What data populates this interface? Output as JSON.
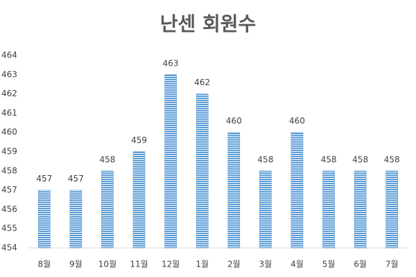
{
  "chart_data": {
    "type": "bar",
    "title": "난센 회원수",
    "categories": [
      "8월",
      "9월",
      "10월",
      "11월",
      "12월",
      "1월",
      "2월",
      "3월",
      "4월",
      "5월",
      "6월",
      "7월"
    ],
    "values": [
      457,
      457,
      458,
      459,
      463,
      462,
      460,
      458,
      460,
      458,
      458,
      458
    ],
    "color": "#5b9bd5",
    "ylim": [
      454,
      464
    ],
    "yticks": [
      454,
      455,
      456,
      457,
      458,
      459,
      460,
      461,
      462,
      463,
      464
    ],
    "grid": false
  }
}
